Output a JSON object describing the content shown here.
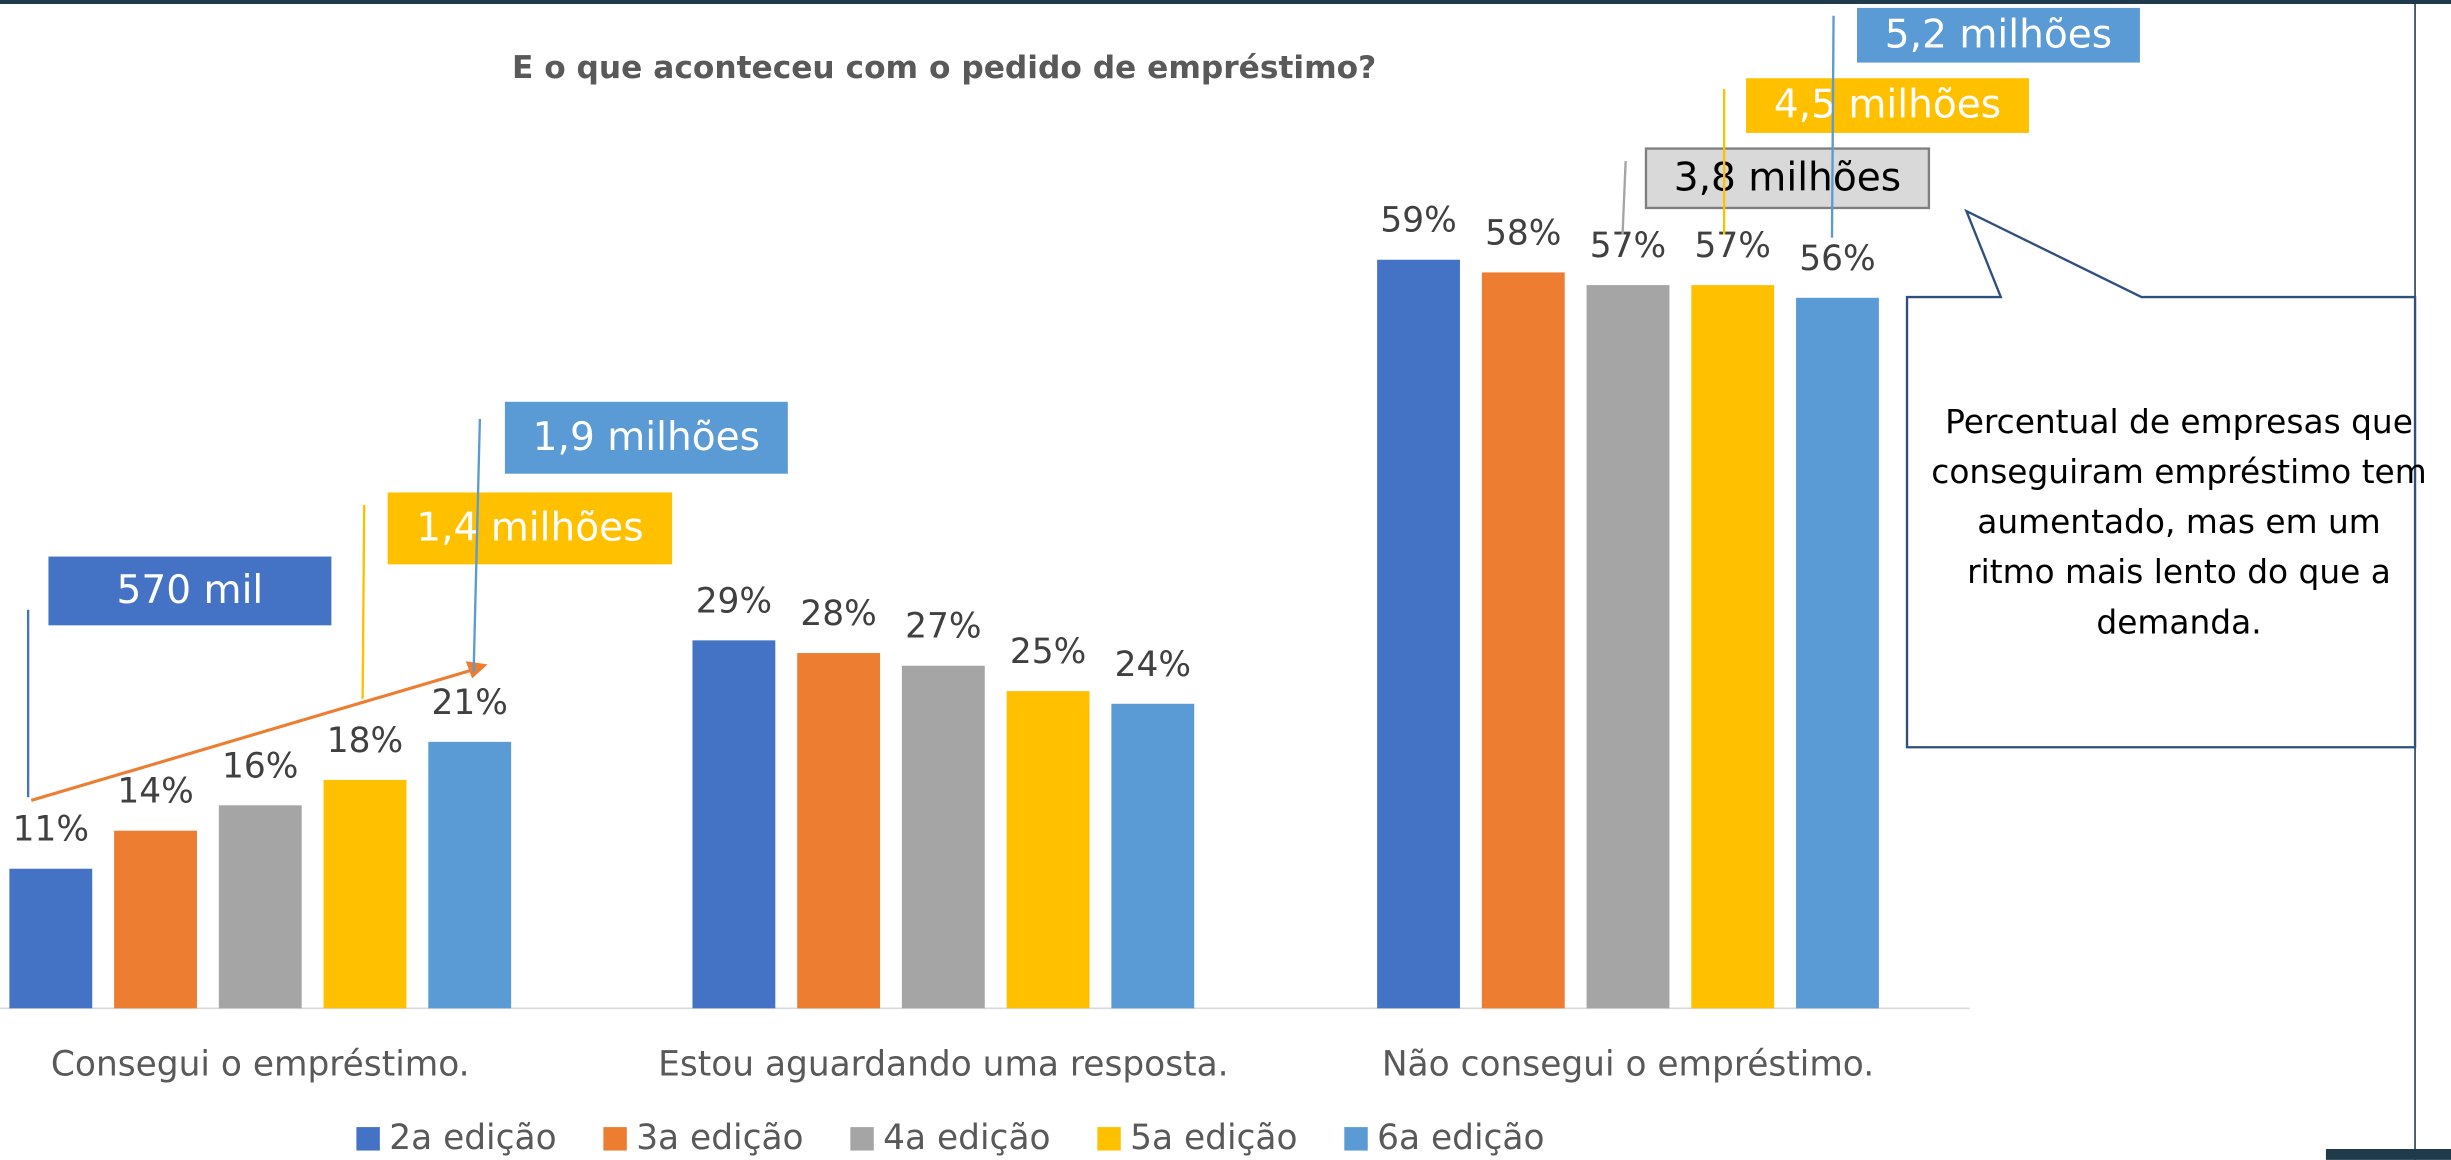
{
  "chart_data": {
    "type": "bar",
    "title": "E o que aconteceu com o pedido de empréstimo?",
    "categories": [
      "Consegui o empréstimo.",
      "Estou aguardando uma resposta.",
      "Não consegui o empréstimo."
    ],
    "series": [
      {
        "name": "2a edição",
        "color": "#4472c4",
        "values": [
          11,
          29,
          59
        ],
        "value_labels": [
          "11%",
          "29%",
          "59%"
        ]
      },
      {
        "name": "3a edição",
        "color": "#ed7d31",
        "values": [
          14,
          28,
          58
        ],
        "value_labels": [
          "14%",
          "28%",
          "58%"
        ]
      },
      {
        "name": "4a edição",
        "color": "#a5a5a5",
        "values": [
          16,
          27,
          57
        ],
        "value_labels": [
          "16%",
          "27%",
          "57%"
        ]
      },
      {
        "name": "5a edição",
        "color": "#ffc000",
        "values": [
          18,
          25,
          57
        ],
        "value_labels": [
          "18%",
          "25%",
          "57%"
        ]
      },
      {
        "name": "6a edição",
        "color": "#5b9bd5",
        "values": [
          21,
          24,
          56
        ],
        "value_labels": [
          "21%",
          "24%",
          "56%"
        ]
      }
    ],
    "ylim": [
      0,
      60
    ],
    "annotations": [
      {
        "text": "570 mil",
        "color": "#4472c4"
      },
      {
        "text": "1,4 milhões",
        "color": "#ffc000"
      },
      {
        "text": "1,9 milhões",
        "color": "#5b9bd5"
      },
      {
        "text": "3,8 milhões",
        "color": "#d9d9d9"
      },
      {
        "text": "4,5 milhões",
        "color": "#ffc000"
      },
      {
        "text": "5,2 milhões",
        "color": "#5b9bd5"
      }
    ],
    "callout": [
      "Percentual de empresas que",
      "conseguiram empréstimo tem",
      "aumentado, mas em um",
      "ritmo mais lento do que a",
      "demanda."
    ]
  }
}
